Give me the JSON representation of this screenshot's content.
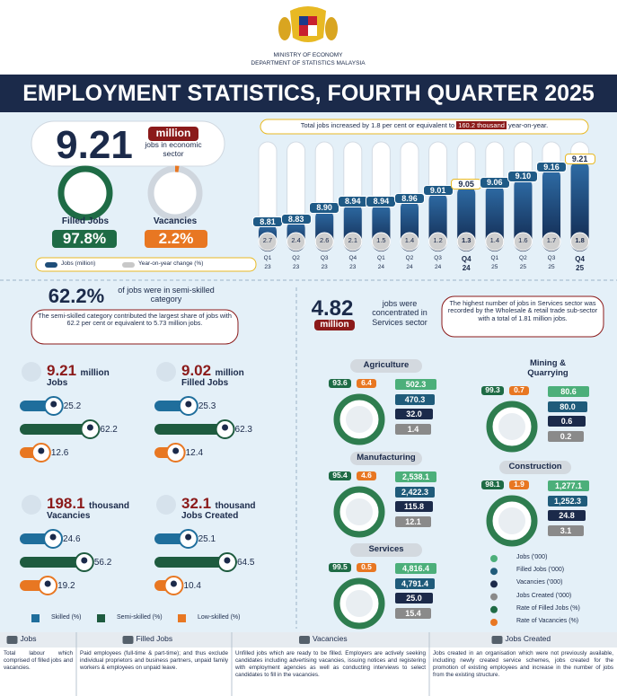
{
  "header": {
    "ministry": "MINISTRY OF ECONOMY",
    "department": "DEPARTMENT OF STATISTICS MALAYSIA",
    "title": "EMPLOYMENT STATISTICS, FOURTH QUARTER 2025"
  },
  "summary": {
    "jobs": "9.21",
    "unit": "million",
    "jobs_text": "jobs in economic sector",
    "filled_label": "Filled Jobs",
    "filled_rate": "97.8%",
    "vacancy_label": "Vacancies",
    "vacancy_rate": "2.2%"
  },
  "trend": {
    "annotation": {
      "before": "Total jobs increased by 1.8 per cent or equivalent to",
      "highlight": "160.2 thousand",
      "after": "year-on-year."
    },
    "quarters": [
      "Q1",
      "Q2",
      "Q3",
      "Q4",
      "Q1",
      "Q2",
      "Q3",
      "Q4",
      "Q1",
      "Q2",
      "Q3",
      "Q4"
    ],
    "years": [
      "23",
      "23",
      "23",
      "23",
      "24",
      "24",
      "24",
      "24",
      "25",
      "25",
      "25",
      "25"
    ],
    "jobs": [
      8.81,
      8.83,
      8.9,
      8.94,
      8.94,
      8.96,
      9.01,
      9.05,
      9.06,
      9.1,
      9.16,
      9.21
    ],
    "jobs_labels": [
      "8.81",
      "8.83",
      "8.90",
      "8.94",
      "8.94",
      "8.96",
      "9.01",
      "9.05",
      "9.06",
      "9.10",
      "9.16",
      "9.21"
    ],
    "yoy": [
      2.7,
      2.4,
      2.6,
      2.1,
      1.5,
      1.4,
      1.2,
      1.3,
      1.4,
      1.6,
      1.7,
      1.8
    ],
    "legend": {
      "jobs": "Jobs (million)",
      "yoy": "Year-on-year change (%)"
    }
  },
  "skill": {
    "share": "62.2%",
    "share_text": "of jobs were in semi-skilled category",
    "note": "The semi-skilled category contributed the largest share of jobs with 62.2 per cent or equivalent to 5.73 million jobs.",
    "panels": [
      {
        "value": "9.21",
        "unit": "million",
        "label": "Jobs",
        "shares": [
          25.2,
          62.2,
          12.6
        ]
      },
      {
        "value": "9.02",
        "unit": "million",
        "label": "Filled Jobs",
        "shares": [
          25.3,
          62.3,
          12.4
        ]
      },
      {
        "value": "198.1",
        "unit": "thousand",
        "label": "Vacancies",
        "shares": [
          24.6,
          56.2,
          19.2
        ]
      },
      {
        "value": "32.1",
        "unit": "thousand",
        "label": "Jobs Created",
        "shares": [
          25.1,
          64.5,
          10.4
        ]
      }
    ],
    "legend": [
      "Skilled (%)",
      "Semi-skilled (%)",
      "Low-skilled (%)"
    ]
  },
  "sector": {
    "value": "4.82",
    "unit": "million",
    "text": "jobs were concentrated in Services sector",
    "note": "The highest number of jobs in Services sector was recorded by the Wholesale & retail trade sub-sector with a total of 1.81 million jobs.",
    "sectors": [
      {
        "name": "Agriculture",
        "filled_rate": "93.6",
        "vacancy_rate": "6.4",
        "values": [
          "502.3",
          "470.3",
          "32.0",
          "1.4"
        ]
      },
      {
        "name": "Manufacturing",
        "filled_rate": "95.4",
        "vacancy_rate": "4.6",
        "values": [
          "2,538.1",
          "2,422.3",
          "115.8",
          "12.1"
        ]
      },
      {
        "name": "Services",
        "filled_rate": "99.5",
        "vacancy_rate": "0.5",
        "values": [
          "4,816.4",
          "4,791.4",
          "25.0",
          "15.4"
        ]
      },
      {
        "name": "Mining & Quarrying",
        "filled_rate": "99.3",
        "vacancy_rate": "0.7",
        "values": [
          "80.6",
          "80.0",
          "0.6",
          "0.2"
        ]
      },
      {
        "name": "Construction",
        "filled_rate": "98.1",
        "vacancy_rate": "1.9",
        "values": [
          "1,277.1",
          "1,252.3",
          "24.8",
          "3.1"
        ]
      }
    ],
    "legend": [
      "Jobs ('000)",
      "Filled Jobs ('000)",
      "Vacancies ('000)",
      "Jobs Created ('000)",
      "Rate of Filled Jobs (%)",
      "Rate of Vacancies (%)"
    ]
  },
  "definitions": [
    {
      "title": "Jobs",
      "text": "Total labour which comprised of filled jobs and vacancies."
    },
    {
      "title": "Filled Jobs",
      "text": "Paid employees (full-time & part-time); and thus exclude individual proprietors and business partners, unpaid family workers & employees on unpaid leave."
    },
    {
      "title": "Vacancies",
      "text": "Unfilled jobs which are ready to be filled. Employers are actively seeking candidates including advertising vacancies, issuing notices and registering with employment agencies as well as conducting interviews to select candidates to fill in the vacancies."
    },
    {
      "title": "Jobs Created",
      "text": "Jobs created in an organisation which were not previously available, including newly created service schemes, jobs created for the promotion of existing employees and increase in the number of jobs from the existing structure."
    }
  ]
}
